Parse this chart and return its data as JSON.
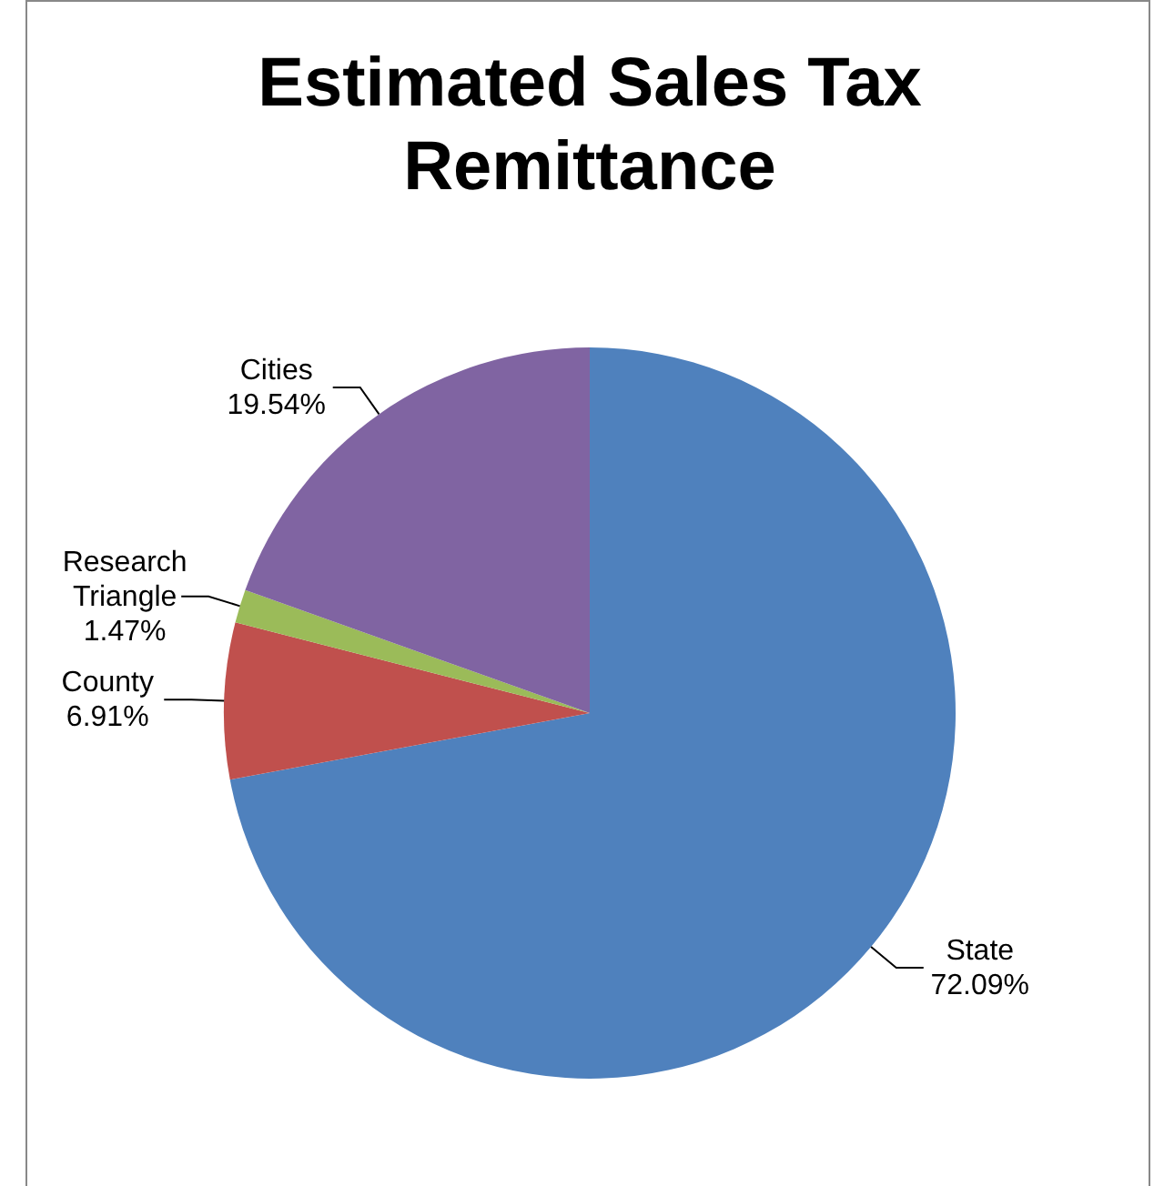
{
  "chart_data": {
    "type": "pie",
    "title": "Estimated Sales Tax Remittance",
    "categories": [
      "State",
      "County",
      "Research Triangle",
      "Cities"
    ],
    "values": [
      72.09,
      6.91,
      1.47,
      19.54
    ],
    "value_labels": [
      "72.09%",
      "6.91%",
      "1.47%",
      "19.54%"
    ],
    "colors": [
      "#4f81bd",
      "#c0504d",
      "#9bbb59",
      "#8064a2"
    ]
  }
}
